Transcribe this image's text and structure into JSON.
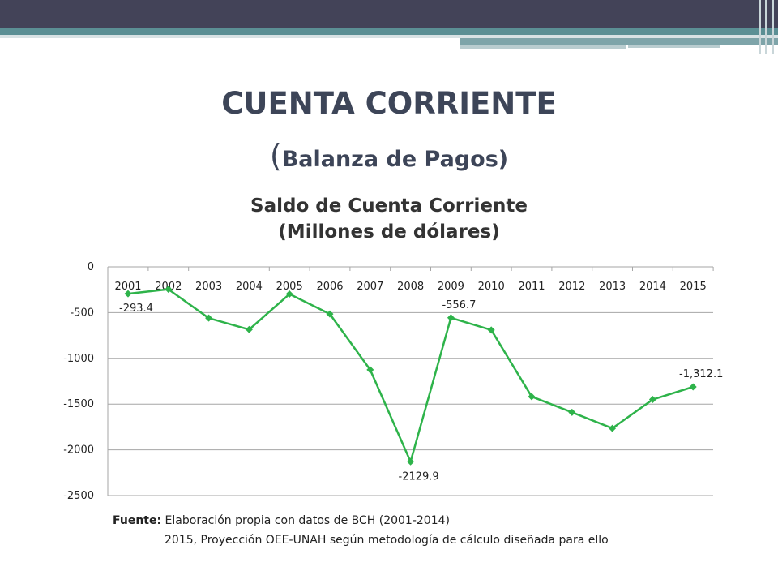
{
  "slide": {
    "title": "CUENTA CORRIENTE",
    "subtitle_open": "(",
    "subtitle": "Balanza de Pagos",
    "subtitle_close": ")"
  },
  "chart_data": {
    "type": "line",
    "title": "Saldo de Cuenta Corriente",
    "subtitle": "(Millones de dólares)",
    "categories": [
      "2001",
      "2002",
      "2003",
      "2004",
      "2005",
      "2006",
      "2007",
      "2008",
      "2009",
      "2010",
      "2011",
      "2012",
      "2013",
      "2014",
      "2015"
    ],
    "series": [
      {
        "values": [
          -293.4,
          -245,
          -560,
          -685,
          -297,
          -515,
          -1125,
          -2129.9,
          -556.7,
          -690,
          -1418,
          -1590,
          -1765,
          -1450,
          -1312.1
        ],
        "color": "#2eb34a"
      }
    ],
    "data_labels": [
      {
        "index": 0,
        "text": "-293.4",
        "position": "below"
      },
      {
        "index": 7,
        "text": "-2129.9",
        "position": "below"
      },
      {
        "index": 8,
        "text": "-556.7",
        "position": "above"
      },
      {
        "index": 14,
        "text": "-1,312.1",
        "position": "above"
      }
    ],
    "yticks": [
      0,
      -500,
      -1000,
      -1500,
      -2000,
      -2500
    ],
    "ylim": [
      -2500,
      0
    ],
    "grid": true,
    "legend": "none"
  },
  "source": {
    "label": "Fuente:",
    "line1": "Elaboración propia con datos de BCH (2001-2014)",
    "line2": "2015, Proyección OEE-UNAH según metodología de cálculo diseñada para ello"
  }
}
